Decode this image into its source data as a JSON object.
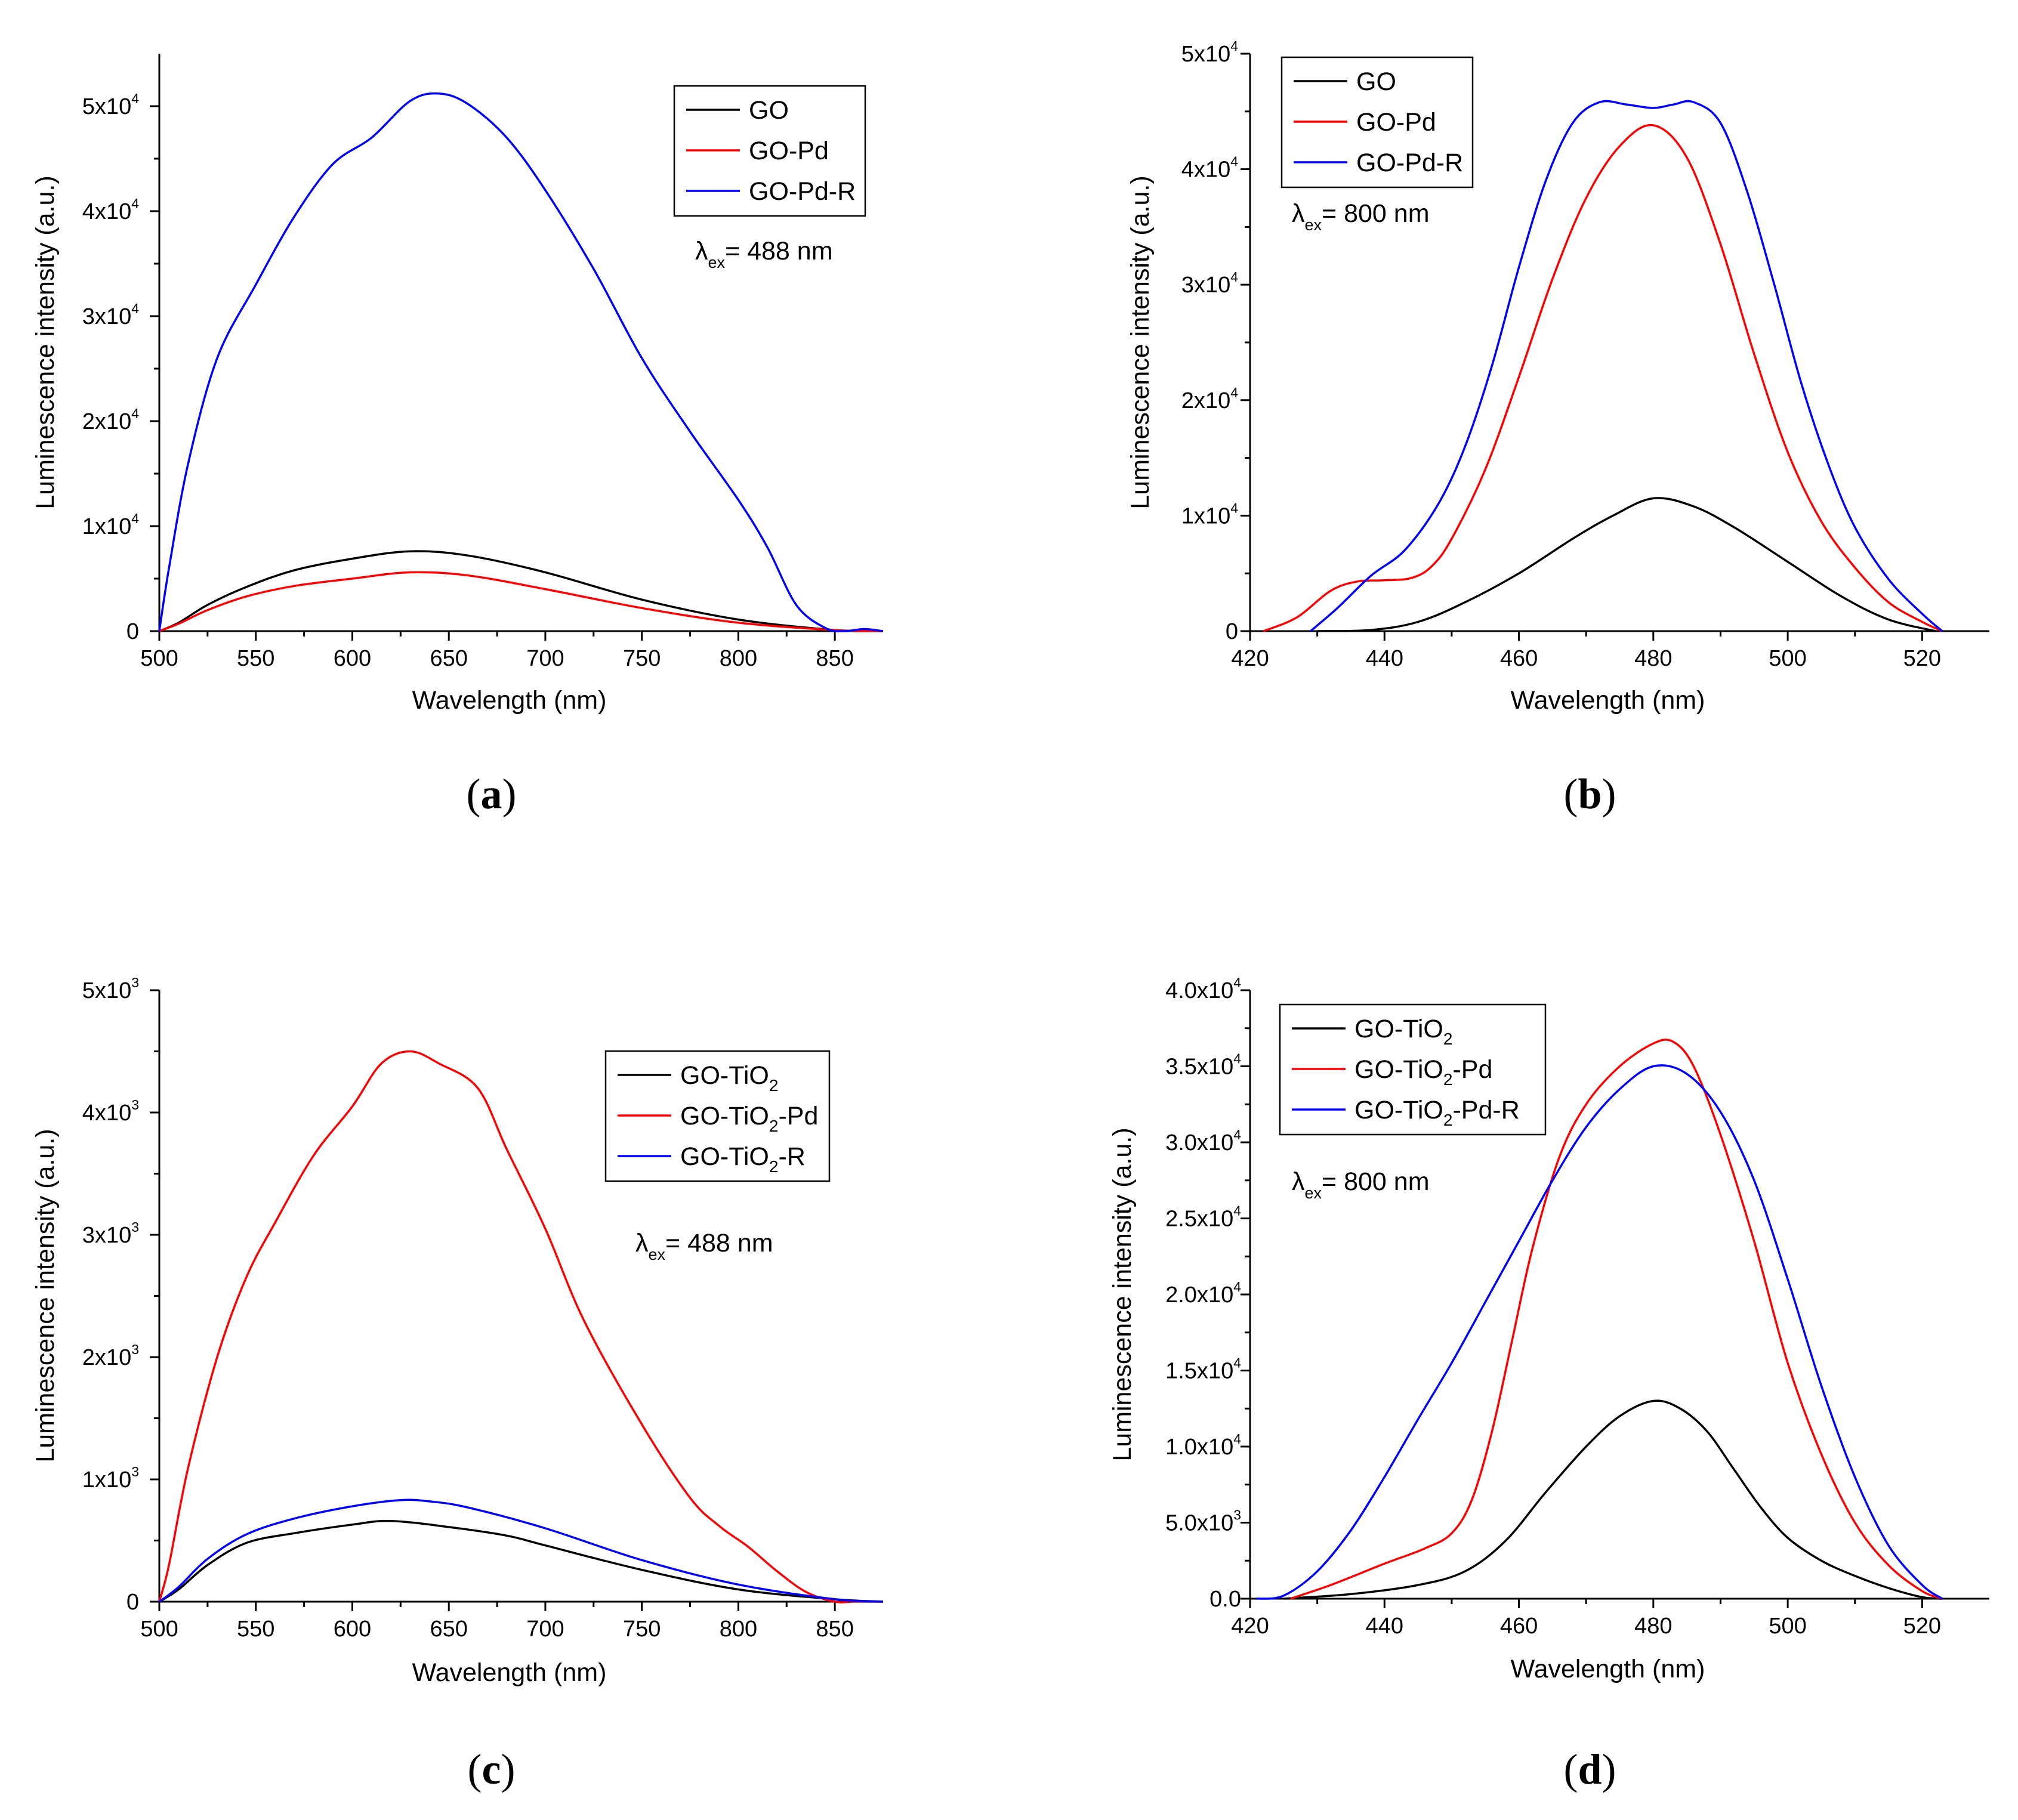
{
  "chart_data": [
    {
      "type": "line",
      "panel_label": "a",
      "xlabel": "Wavelength (nm)",
      "ylabel": "Luminescence intensity (a.u.)",
      "xlim": [
        500,
        875
      ],
      "ylim": [
        0,
        55000
      ],
      "x_ticks": [
        "500",
        "550",
        "600",
        "650",
        "700",
        "750",
        "800",
        "850"
      ],
      "y_ticks": [
        {
          "value": 0,
          "mantissa": "0",
          "exponent": ""
        },
        {
          "value": 10000,
          "mantissa": "1x10",
          "exponent": "4"
        },
        {
          "value": 20000,
          "mantissa": "2x10",
          "exponent": "4"
        },
        {
          "value": 30000,
          "mantissa": "3x10",
          "exponent": "4"
        },
        {
          "value": 40000,
          "mantissa": "4x10",
          "exponent": "4"
        },
        {
          "value": 50000,
          "mantissa": "5x10",
          "exponent": "4"
        }
      ],
      "annotation": {
        "prefix": "λ",
        "sub": "ex",
        "text": "= 488 nm"
      },
      "legend": {
        "position": "top-right"
      },
      "series": [
        {
          "name": "GO",
          "name_parts": [
            "GO"
          ],
          "color": "#000000",
          "x": [
            500,
            510,
            525,
            545,
            570,
            600,
            630,
            660,
            700,
            750,
            800,
            850,
            875
          ],
          "y": [
            0,
            800,
            2500,
            4200,
            5800,
            6900,
            7600,
            7200,
            5600,
            3000,
            1100,
            100,
            0
          ]
        },
        {
          "name": "GO-Pd",
          "name_parts": [
            "GO-Pd"
          ],
          "color": "#ff0000",
          "x": [
            500,
            510,
            525,
            545,
            570,
            600,
            630,
            660,
            700,
            750,
            800,
            850,
            875
          ],
          "y": [
            0,
            700,
            2000,
            3300,
            4300,
            5000,
            5600,
            5300,
            4000,
            2200,
            800,
            100,
            0
          ]
        },
        {
          "name": "GO-Pd-R",
          "name_parts": [
            "GO-Pd-R"
          ],
          "color": "#0000ff",
          "x": [
            500,
            505,
            515,
            530,
            550,
            570,
            590,
            610,
            630,
            645,
            660,
            680,
            700,
            725,
            750,
            775,
            800,
            815,
            830,
            845,
            855,
            865,
            875
          ],
          "y": [
            0,
            6000,
            16000,
            26000,
            33000,
            39500,
            44500,
            47000,
            50500,
            51200,
            50200,
            47000,
            42000,
            34500,
            26000,
            19000,
            12500,
            8000,
            2500,
            300,
            0,
            200,
            0
          ]
        }
      ]
    },
    {
      "type": "line",
      "panel_label": "b",
      "xlabel": "Wavelength (nm)",
      "ylabel": "Luminescence intensity (a.u.)",
      "xlim": [
        420,
        530
      ],
      "ylim": [
        0,
        50000
      ],
      "x_ticks": [
        "420",
        "440",
        "460",
        "480",
        "500",
        "520"
      ],
      "y_ticks": [
        {
          "value": 0,
          "mantissa": "0",
          "exponent": ""
        },
        {
          "value": 10000,
          "mantissa": "1x10",
          "exponent": "4"
        },
        {
          "value": 20000,
          "mantissa": "2x10",
          "exponent": "4"
        },
        {
          "value": 30000,
          "mantissa": "3x10",
          "exponent": "4"
        },
        {
          "value": 40000,
          "mantissa": "4x10",
          "exponent": "4"
        },
        {
          "value": 50000,
          "mantissa": "5x10",
          "exponent": "4"
        }
      ],
      "annotation": {
        "prefix": "λ",
        "sub": "ex",
        "text": "= 800 nm"
      },
      "legend": {
        "position": "top-left"
      },
      "series": [
        {
          "name": "GO",
          "name_parts": [
            "GO"
          ],
          "color": "#000000",
          "x": [
            430,
            438,
            445,
            452,
            460,
            468,
            474,
            480,
            486,
            492,
            500,
            508,
            515,
            522
          ],
          "y": [
            0,
            100,
            800,
            2500,
            5000,
            8000,
            10000,
            11500,
            10800,
            9000,
            6000,
            3000,
            1000,
            0
          ]
        },
        {
          "name": "GO-Pd",
          "name_parts": [
            "GO-Pd"
          ],
          "color": "#ff0000",
          "x": [
            422,
            427,
            432,
            436,
            440,
            444,
            447,
            450,
            455,
            460,
            465,
            470,
            475,
            480,
            485,
            490,
            495,
            500,
            505,
            510,
            515,
            520,
            523
          ],
          "y": [
            0,
            1200,
            3500,
            4300,
            4400,
            4600,
            5600,
            8000,
            14000,
            22000,
            30500,
            37500,
            42000,
            43800,
            41000,
            33500,
            24000,
            15500,
            9500,
            5500,
            2500,
            800,
            0
          ]
        },
        {
          "name": "GO-Pd-R",
          "name_parts": [
            "GO-Pd-R"
          ],
          "color": "#0000ff",
          "x": [
            429,
            433,
            438,
            443,
            448,
            452,
            456,
            460,
            464,
            468,
            472,
            476,
            480,
            483,
            486,
            490,
            494,
            498,
            502,
            506,
            510,
            515,
            520,
            523
          ],
          "y": [
            0,
            2000,
            4800,
            7000,
            11000,
            16000,
            23000,
            31500,
            39000,
            44000,
            45800,
            45600,
            45300,
            45600,
            45800,
            44000,
            38000,
            30000,
            21500,
            14500,
            9000,
            4500,
            1500,
            0
          ]
        }
      ]
    },
    {
      "type": "line",
      "panel_label": "c",
      "xlabel": "Wavelength (nm)",
      "ylabel": "Luminescence intensity (a.u.)",
      "xlim": [
        500,
        875
      ],
      "ylim": [
        0,
        5000
      ],
      "x_ticks": [
        "500",
        "550",
        "600",
        "650",
        "700",
        "750",
        "800",
        "850"
      ],
      "y_ticks": [
        {
          "value": 0,
          "mantissa": "0",
          "exponent": ""
        },
        {
          "value": 1000,
          "mantissa": "1x10",
          "exponent": "3"
        },
        {
          "value": 2000,
          "mantissa": "2x10",
          "exponent": "3"
        },
        {
          "value": 3000,
          "mantissa": "3x10",
          "exponent": "3"
        },
        {
          "value": 4000,
          "mantissa": "4x10",
          "exponent": "3"
        },
        {
          "value": 5000,
          "mantissa": "5x10",
          "exponent": "3"
        }
      ],
      "annotation": {
        "prefix": "λ",
        "sub": "ex",
        "text": "= 488 nm"
      },
      "legend": {
        "position": "top-right"
      },
      "series": [
        {
          "name": "GO-TiO2",
          "name_parts": [
            "GO-TiO",
            "2",
            ""
          ],
          "color": "#000000",
          "x": [
            500,
            510,
            525,
            545,
            570,
            600,
            620,
            650,
            680,
            700,
            750,
            800,
            850,
            875
          ],
          "y": [
            0,
            100,
            300,
            480,
            560,
            630,
            660,
            610,
            540,
            460,
            260,
            100,
            20,
            0
          ]
        },
        {
          "name": "GO-TiO2-Pd",
          "name_parts": [
            "GO-TiO",
            "2",
            "-Pd"
          ],
          "color": "#ff0000",
          "x": [
            500,
            505,
            515,
            530,
            545,
            560,
            580,
            600,
            615,
            630,
            645,
            665,
            680,
            700,
            720,
            750,
            775,
            790,
            805,
            820,
            835,
            850,
            860,
            875
          ],
          "y": [
            0,
            300,
            1100,
            2000,
            2650,
            3100,
            3650,
            4050,
            4400,
            4500,
            4400,
            4200,
            3700,
            3050,
            2300,
            1450,
            850,
            620,
            450,
            250,
            80,
            0,
            0,
            0
          ]
        },
        {
          "name": "GO-TiO2-R",
          "name_parts": [
            "GO-TiO",
            "2",
            "-R"
          ],
          "color": "#0000ff",
          "x": [
            500,
            510,
            525,
            545,
            570,
            600,
            625,
            640,
            660,
            700,
            750,
            800,
            850,
            875
          ],
          "y": [
            0,
            120,
            350,
            550,
            680,
            780,
            830,
            820,
            770,
            600,
            340,
            140,
            20,
            0
          ]
        }
      ]
    },
    {
      "type": "line",
      "panel_label": "d",
      "xlabel": "Wavelength (nm)",
      "ylabel": "Luminescence intensity (a.u.)",
      "xlim": [
        420,
        530
      ],
      "ylim": [
        0,
        40000
      ],
      "x_ticks": [
        "420",
        "440",
        "460",
        "480",
        "500",
        "520"
      ],
      "y_ticks": [
        {
          "value": 0,
          "mantissa": "0.0",
          "exponent": ""
        },
        {
          "value": 5000,
          "mantissa": "5.0x10",
          "exponent": "3"
        },
        {
          "value": 10000,
          "mantissa": "1.0x10",
          "exponent": "4"
        },
        {
          "value": 15000,
          "mantissa": "1.5x10",
          "exponent": "4"
        },
        {
          "value": 20000,
          "mantissa": "2.0x10",
          "exponent": "4"
        },
        {
          "value": 25000,
          "mantissa": "2.5x10",
          "exponent": "4"
        },
        {
          "value": 30000,
          "mantissa": "3.0x10",
          "exponent": "4"
        },
        {
          "value": 35000,
          "mantissa": "3.5x10",
          "exponent": "4"
        },
        {
          "value": 40000,
          "mantissa": "4.0x10",
          "exponent": "4"
        }
      ],
      "annotation": {
        "prefix": "λ",
        "sub": "ex",
        "text": "= 800 nm"
      },
      "legend": {
        "position": "top-left"
      },
      "series": [
        {
          "name": "GO-TiO2",
          "name_parts": [
            "GO-TiO",
            "2",
            ""
          ],
          "color": "#000000",
          "x": [
            425,
            435,
            445,
            452,
            458,
            464,
            470,
            475,
            480,
            484,
            488,
            492,
            496,
            500,
            505,
            510,
            515,
            520,
            523
          ],
          "y": [
            0,
            300,
            900,
            1800,
            3800,
            7000,
            10000,
            12000,
            13000,
            12500,
            11000,
            8500,
            6000,
            4000,
            2500,
            1500,
            700,
            100,
            0
          ]
        },
        {
          "name": "GO-TiO2-Pd",
          "name_parts": [
            "GO-TiO",
            "2",
            "-Pd"
          ],
          "color": "#ff0000",
          "x": [
            426,
            432,
            440,
            446,
            450,
            453,
            456,
            459,
            462,
            466,
            470,
            475,
            480,
            483,
            486,
            490,
            495,
            500,
            505,
            510,
            515,
            520,
            523
          ],
          "y": [
            0,
            900,
            2300,
            3300,
            4300,
            6500,
            11000,
            17000,
            23000,
            29000,
            32500,
            35000,
            36500,
            36600,
            35000,
            30500,
            23500,
            15500,
            9500,
            5000,
            2200,
            500,
            0
          ]
        },
        {
          "name": "GO-TiO2-Pd-R",
          "name_parts": [
            "GO-TiO",
            "2",
            "-Pd-R"
          ],
          "color": "#0000ff",
          "x": [
            421,
            425,
            430,
            435,
            440,
            445,
            450,
            455,
            460,
            465,
            470,
            475,
            480,
            485,
            490,
            495,
            500,
            505,
            510,
            515,
            520,
            523
          ],
          "y": [
            0,
            200,
            1800,
            4500,
            8000,
            11800,
            15500,
            19500,
            23500,
            27500,
            31000,
            33500,
            35000,
            34500,
            32000,
            27500,
            21000,
            14000,
            8000,
            3500,
            900,
            0
          ]
        }
      ]
    }
  ]
}
